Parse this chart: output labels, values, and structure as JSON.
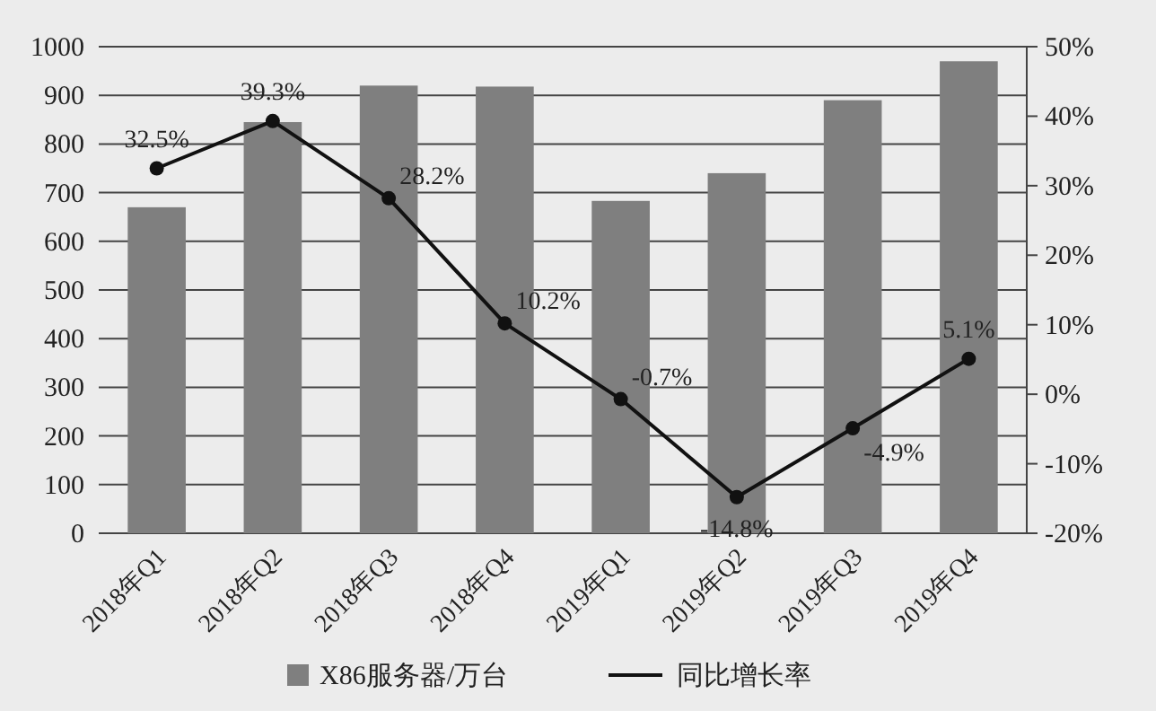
{
  "chart_data": {
    "type": "bar",
    "categories": [
      "2018年Q1",
      "2018年Q2",
      "2018年Q3",
      "2018年Q4",
      "2019年Q1",
      "2019年Q2",
      "2019年Q3",
      "2019年Q4"
    ],
    "series": [
      {
        "name": "X86服务器/万台",
        "color": "#7f7f7f",
        "values": [
          670,
          845,
          920,
          918,
          683,
          740,
          890,
          970
        ]
      },
      {
        "name": "同比增长率",
        "type": "line",
        "axis": "y2",
        "color": "#111111",
        "marker": "circle",
        "values": [
          32.5,
          39.3,
          28.2,
          10.2,
          -0.7,
          -14.8,
          -4.9,
          5.1
        ],
        "value_labels": [
          "32.5%",
          "39.3%",
          "28.2%",
          "10.2%",
          "-0.7%",
          "-14.8%",
          "-4.9%",
          "5.1%"
        ]
      }
    ],
    "ylim": [
      0,
      1000
    ],
    "yticks": [
      0,
      100,
      200,
      300,
      400,
      500,
      600,
      700,
      800,
      900,
      1000
    ],
    "y2lim": [
      -20,
      50
    ],
    "y2ticks": [
      {
        "value": -20,
        "label": "-20%"
      },
      {
        "value": -10,
        "label": "-10%"
      },
      {
        "value": 0,
        "label": "0%"
      },
      {
        "value": 10,
        "label": "10%"
      },
      {
        "value": 20,
        "label": "20%"
      },
      {
        "value": 30,
        "label": "30%"
      },
      {
        "value": 40,
        "label": "40%"
      },
      {
        "value": 50,
        "label": "50%"
      }
    ],
    "grid": "y",
    "legend": "bottom"
  }
}
